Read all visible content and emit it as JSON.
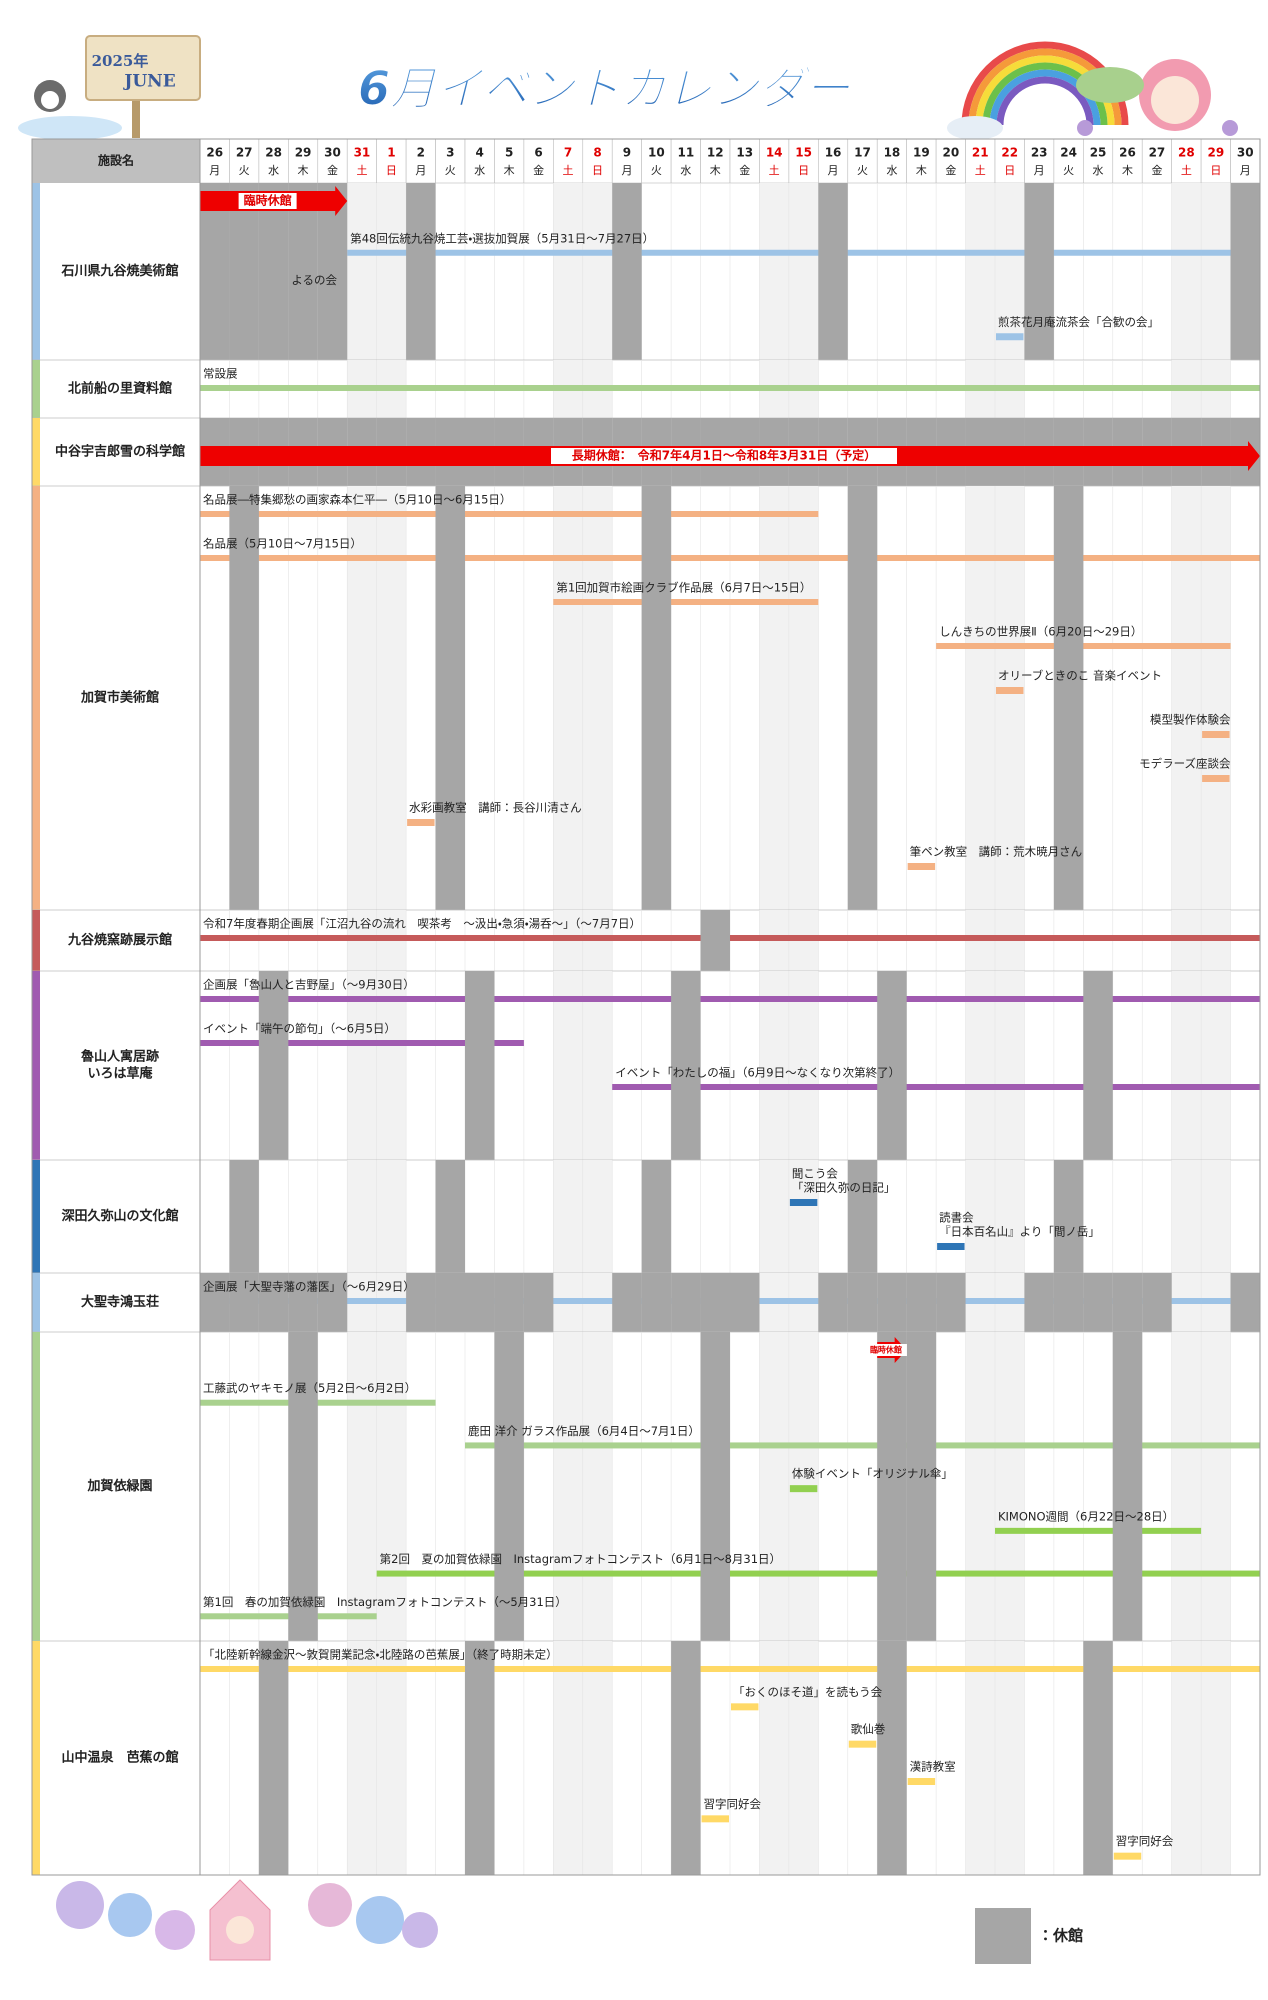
{
  "header": {
    "title": "6月イベントカレンダー",
    "year": "2025年",
    "month": "JUNE"
  },
  "table": {
    "name_header": "施設名",
    "closed_color": "#a6a6a6",
    "weekend_color": "#f2f2f2",
    "days": [
      {
        "day": "26",
        "weekday": "月"
      },
      {
        "day": "27",
        "weekday": "火"
      },
      {
        "day": "28",
        "weekday": "水"
      },
      {
        "day": "29",
        "weekday": "木"
      },
      {
        "day": "30",
        "weekday": "金"
      },
      {
        "day": "31",
        "weekday": "土",
        "color": "#e00000"
      },
      {
        "day": "1",
        "weekday": "日",
        "color": "#e00000"
      },
      {
        "day": "2",
        "weekday": "月"
      },
      {
        "day": "3",
        "weekday": "火"
      },
      {
        "day": "4",
        "weekday": "水"
      },
      {
        "day": "5",
        "weekday": "木"
      },
      {
        "day": "6",
        "weekday": "金"
      },
      {
        "day": "7",
        "weekday": "土",
        "color": "#e00000"
      },
      {
        "day": "8",
        "weekday": "日",
        "color": "#e00000"
      },
      {
        "day": "9",
        "weekday": "月"
      },
      {
        "day": "10",
        "weekday": "火"
      },
      {
        "day": "11",
        "weekday": "水"
      },
      {
        "day": "12",
        "weekday": "木"
      },
      {
        "day": "13",
        "weekday": "金"
      },
      {
        "day": "14",
        "weekday": "土",
        "color": "#e00000"
      },
      {
        "day": "15",
        "weekday": "日",
        "color": "#e00000"
      },
      {
        "day": "16",
        "weekday": "月"
      },
      {
        "day": "17",
        "weekday": "火"
      },
      {
        "day": "18",
        "weekday": "水"
      },
      {
        "day": "19",
        "weekday": "木"
      },
      {
        "day": "20",
        "weekday": "金"
      },
      {
        "day": "21",
        "weekday": "土",
        "color": "#e00000"
      },
      {
        "day": "22",
        "weekday": "日",
        "color": "#e00000"
      },
      {
        "day": "23",
        "weekday": "月"
      },
      {
        "day": "24",
        "weekday": "火"
      },
      {
        "day": "25",
        "weekday": "水"
      },
      {
        "day": "26",
        "weekday": "木"
      },
      {
        "day": "27",
        "weekday": "金"
      },
      {
        "day": "28",
        "weekday": "土",
        "color": "#e00000"
      },
      {
        "day": "29",
        "weekday": "日",
        "color": "#e00000"
      },
      {
        "day": "30",
        "weekday": "月"
      }
    ],
    "facilities": [
      {
        "name": [
          "石川県九谷焼美術館"
        ],
        "color": "#9dc3e6",
        "closed": [
          0,
          1,
          2,
          3,
          4,
          7,
          14,
          21,
          28,
          35
        ],
        "arrows": [
          {
            "label": "臨時休館",
            "span": [
              0,
              4
            ]
          }
        ],
        "events": [
          {
            "label": "第48回伝統九谷焼工芸・選抜加賀展（5月31日～7月27日）",
            "span": [
              5,
              35
            ]
          },
          {
            "label": "よるの会",
            "span": [
              3,
              3
            ]
          },
          {
            "label": "煎茶花月庵流茶会「合歓の会」",
            "span": [
              27,
              27
            ]
          }
        ]
      },
      {
        "name": [
          "北前船の里資料館"
        ],
        "color": "#a9d18e",
        "closed": [],
        "events": [
          {
            "label": "常設展",
            "span": [
              0,
              35
            ]
          }
        ]
      },
      {
        "name": [
          "中谷宇吉郎雪の科学館"
        ],
        "color": "#ffd966",
        "closed": [
          0,
          1,
          2,
          3,
          4,
          5,
          6,
          7,
          8,
          9,
          10,
          11,
          12,
          13,
          14,
          15,
          16,
          17,
          18,
          19,
          20,
          21,
          22,
          23,
          24,
          25,
          26,
          27,
          28,
          29,
          30,
          31,
          32,
          33,
          34,
          35
        ],
        "arrows": [
          {
            "label": "長期休館：　令和7年4月1日～令和8年3月31日（予定）",
            "span": [
              0,
              35
            ]
          }
        ],
        "events": []
      },
      {
        "name": [
          "加賀市美術館"
        ],
        "color": "#f4b183",
        "closed": [
          1,
          8,
          15,
          22,
          29
        ],
        "events": [
          {
            "label": "名品展―特集郷愁の画家森本仁平―（5月10日～6月15日）",
            "span": [
              0,
              20
            ]
          },
          {
            "label": "名品展（5月10日～7月15日）",
            "span": [
              0,
              35
            ]
          },
          {
            "label": "第1回加賀市絵画クラブ作品展（6月7日～15日）",
            "span": [
              12,
              20
            ]
          },
          {
            "label": "しんきちの世界展Ⅱ（6月20日～29日）",
            "span": [
              25,
              34
            ]
          },
          {
            "label": "オリーブときのこ 音楽イベント",
            "span": [
              27,
              27
            ]
          },
          {
            "label": "模型製作体験会",
            "span": [
              34,
              34
            ]
          },
          {
            "label": "モデラーズ座談会",
            "span": [
              34,
              34
            ]
          },
          {
            "label": "水彩画教室　講師：長谷川清さん",
            "span": [
              7,
              7
            ]
          },
          {
            "label": "筆ペン教室　講師：荒木暁月さん",
            "span": [
              24,
              24
            ]
          }
        ]
      },
      {
        "name": [
          "九谷焼窯跡展示館"
        ],
        "color": "#c55a5a",
        "closed": [
          17
        ],
        "events": [
          {
            "label": "令和7年度春期企画展「江沼九谷の流れ　喫茶考　～汲出・急須・湯呑～」（～7月7日）",
            "span": [
              0,
              35
            ]
          }
        ]
      },
      {
        "name": [
          "魯山人寓居跡",
          "いろは草庵"
        ],
        "color": "#a05bb0",
        "closed": [
          2,
          9,
          16,
          23,
          30
        ],
        "events": [
          {
            "label": "企画展「魯山人と吉野屋」（～9月30日）",
            "span": [
              0,
              35
            ]
          },
          {
            "label": "イベント「端午の節句」（～6月5日）",
            "span": [
              0,
              10
            ]
          },
          {
            "label": "イベント「わたしの福」（6月9日～なくなり次第終了）",
            "span": [
              14,
              35
            ]
          }
        ]
      },
      {
        "name": [
          "深田久弥山の文化館"
        ],
        "color": "#2e75b6",
        "closed": [
          1,
          8,
          15,
          22,
          29
        ],
        "events": [
          {
            "label": [
              "聞こう会",
              "「深田久弥の日記」"
            ],
            "span": [
              20,
              20
            ]
          },
          {
            "label": [
              "読書会",
              "『日本百名山』より「間ノ岳」"
            ],
            "span": [
              25,
              25
            ]
          }
        ]
      },
      {
        "name": [
          "大聖寺鴻玉荘"
        ],
        "color": "#9dc3e6",
        "closed": [
          0,
          1,
          2,
          3,
          4,
          7,
          8,
          9,
          10,
          11,
          14,
          15,
          16,
          17,
          18,
          21,
          22,
          23,
          24,
          25,
          28,
          29,
          30,
          31,
          32,
          35
        ],
        "events": [
          {
            "label": "企画展「大聖寺藩の藩医」（～6月29日）",
            "span": [
              0,
              34
            ]
          }
        ]
      },
      {
        "name": [
          "加賀依緑園"
        ],
        "color": "#a9d18e",
        "closed": [
          3,
          10,
          17,
          23,
          24,
          31
        ],
        "arrows": [
          {
            "label": "臨時休館",
            "span": [
              23,
              23
            ]
          }
        ],
        "events": [
          {
            "label": "工藤武のヤキモノ展（5月2日～6月2日）",
            "span": [
              0,
              7
            ]
          },
          {
            "label": "鹿田 洋介 ガラス作品展（6月4日～7月1日）",
            "span": [
              9,
              35
            ]
          },
          {
            "label": "体験イベント「オリジナル傘」",
            "span": [
              20,
              20
            ],
            "color": "#92d050"
          },
          {
            "label": "KIMONO週間（6月22日～28日）",
            "span": [
              27,
              33
            ],
            "color": "#92d050"
          },
          {
            "label": "第2回　夏の加賀依緑園　Instagramフォトコンテスト（6月1日～8月31日）",
            "span": [
              6,
              35
            ],
            "color": "#92d050"
          },
          {
            "label": "第1回　春の加賀依緑園　Instagramフォトコンテスト（～5月31日）",
            "span": [
              0,
              5
            ]
          }
        ]
      },
      {
        "name": [
          "山中温泉　芭蕉の館"
        ],
        "color": "#ffd966",
        "closed": [
          2,
          9,
          16,
          23,
          30
        ],
        "events": [
          {
            "label": "「北陸新幹線金沢～敦賀開業記念・北陸路の芭蕉展」（終了時期未定）",
            "span": [
              0,
              35
            ]
          },
          {
            "label": "「おくのほそ道」を読もう会",
            "span": [
              18,
              18
            ]
          },
          {
            "label": "歌仙巻",
            "span": [
              22,
              22
            ]
          },
          {
            "label": "漢詩教室",
            "span": [
              24,
              24
            ]
          },
          {
            "label": "習字同好会",
            "span": [
              17,
              17
            ]
          },
          {
            "label": "習字同好会",
            "span": [
              31,
              31
            ]
          }
        ]
      }
    ]
  },
  "legend": {
    "label": "：休館"
  }
}
